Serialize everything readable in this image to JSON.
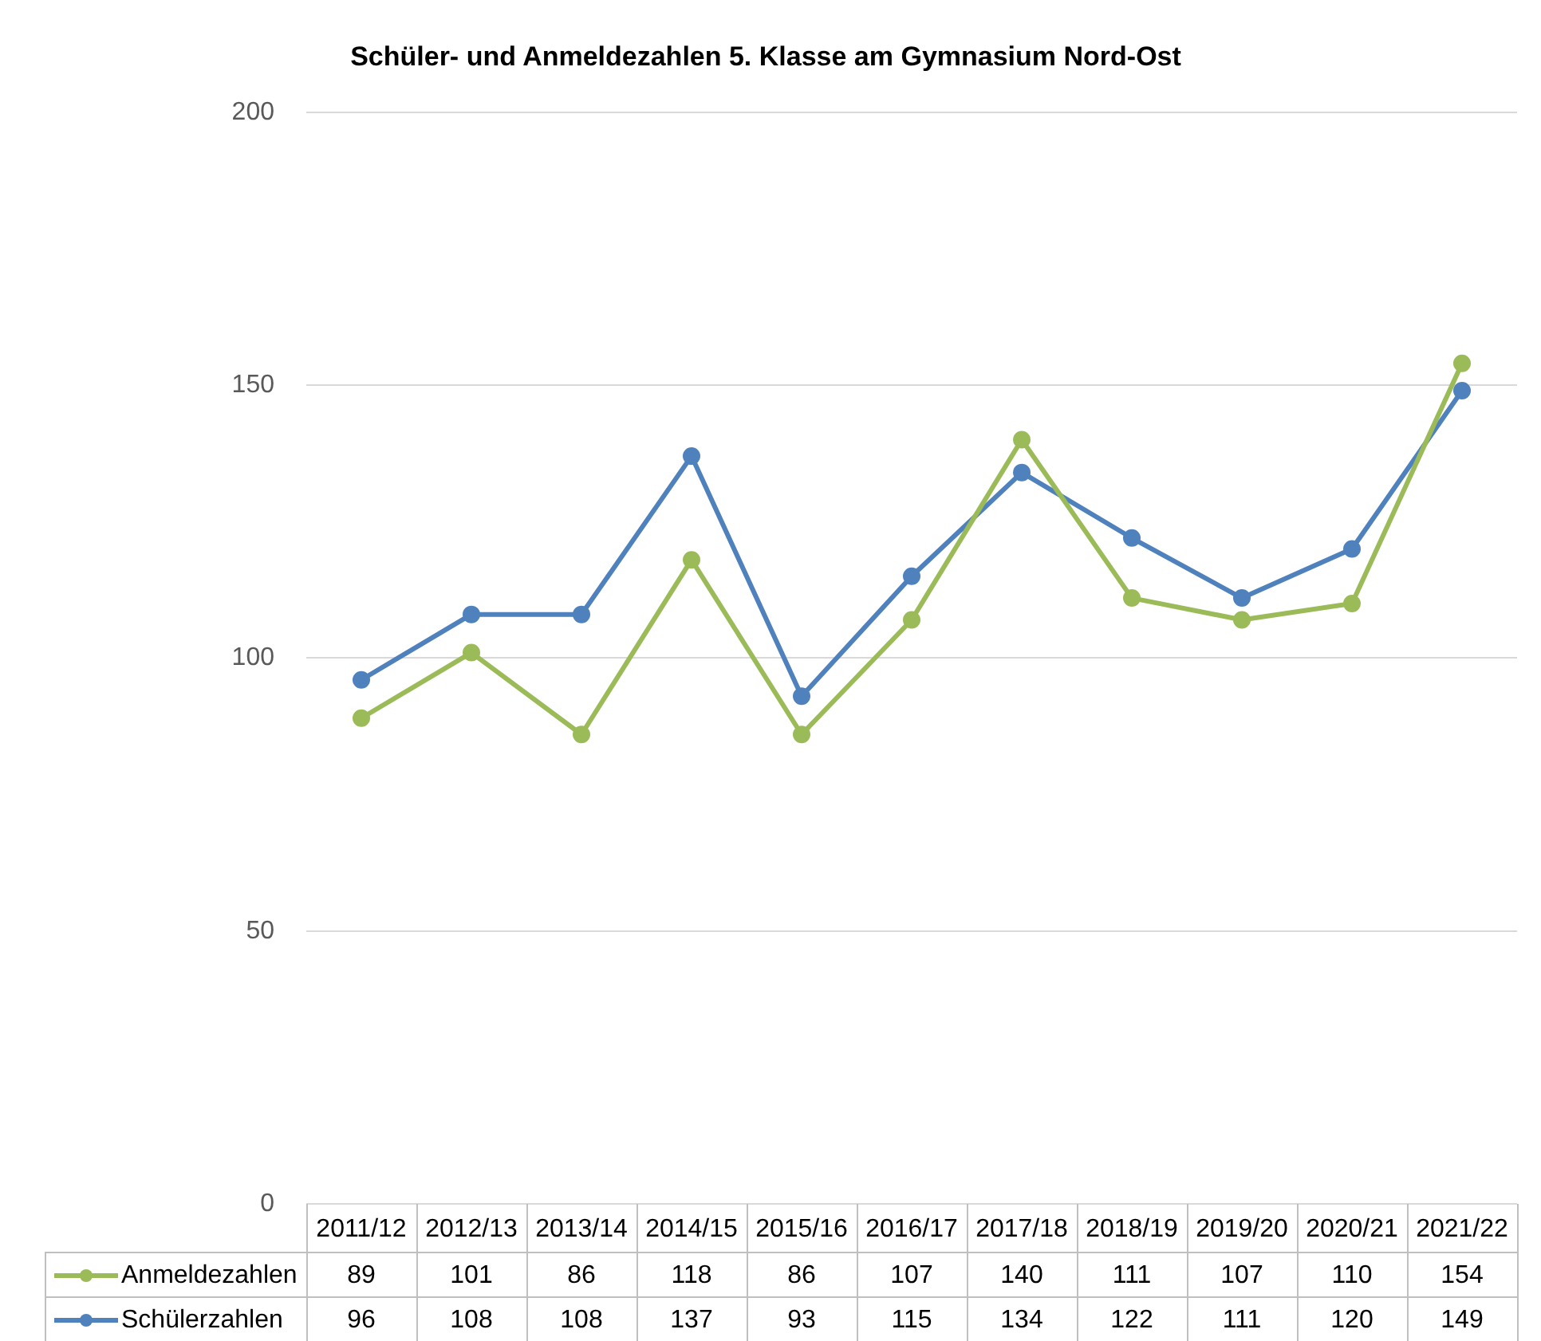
{
  "chart_data": {
    "type": "line",
    "title": "Schüler- und Anmeldezahlen 5. Klasse am Gymnasium Nord-Ost",
    "categories": [
      "2011/12",
      "2012/13",
      "2013/14",
      "2014/15",
      "2015/16",
      "2016/17",
      "2017/18",
      "2018/19",
      "2019/20",
      "2020/21",
      "2021/22"
    ],
    "series": [
      {
        "name": "Anmeldezahlen",
        "color": "#9bbb59",
        "values": [
          89,
          101,
          86,
          118,
          86,
          107,
          140,
          111,
          107,
          110,
          154
        ]
      },
      {
        "name": "Schülerzahlen",
        "color": "#4f81bd",
        "values": [
          96,
          108,
          108,
          137,
          93,
          115,
          134,
          122,
          111,
          120,
          149
        ]
      }
    ],
    "ylim": [
      0,
      200
    ],
    "yticks": [
      0,
      50,
      100,
      150,
      200
    ],
    "grid": "y",
    "legend": "bottom",
    "data_labels": true,
    "marker": "circle",
    "line_style": "solid"
  }
}
